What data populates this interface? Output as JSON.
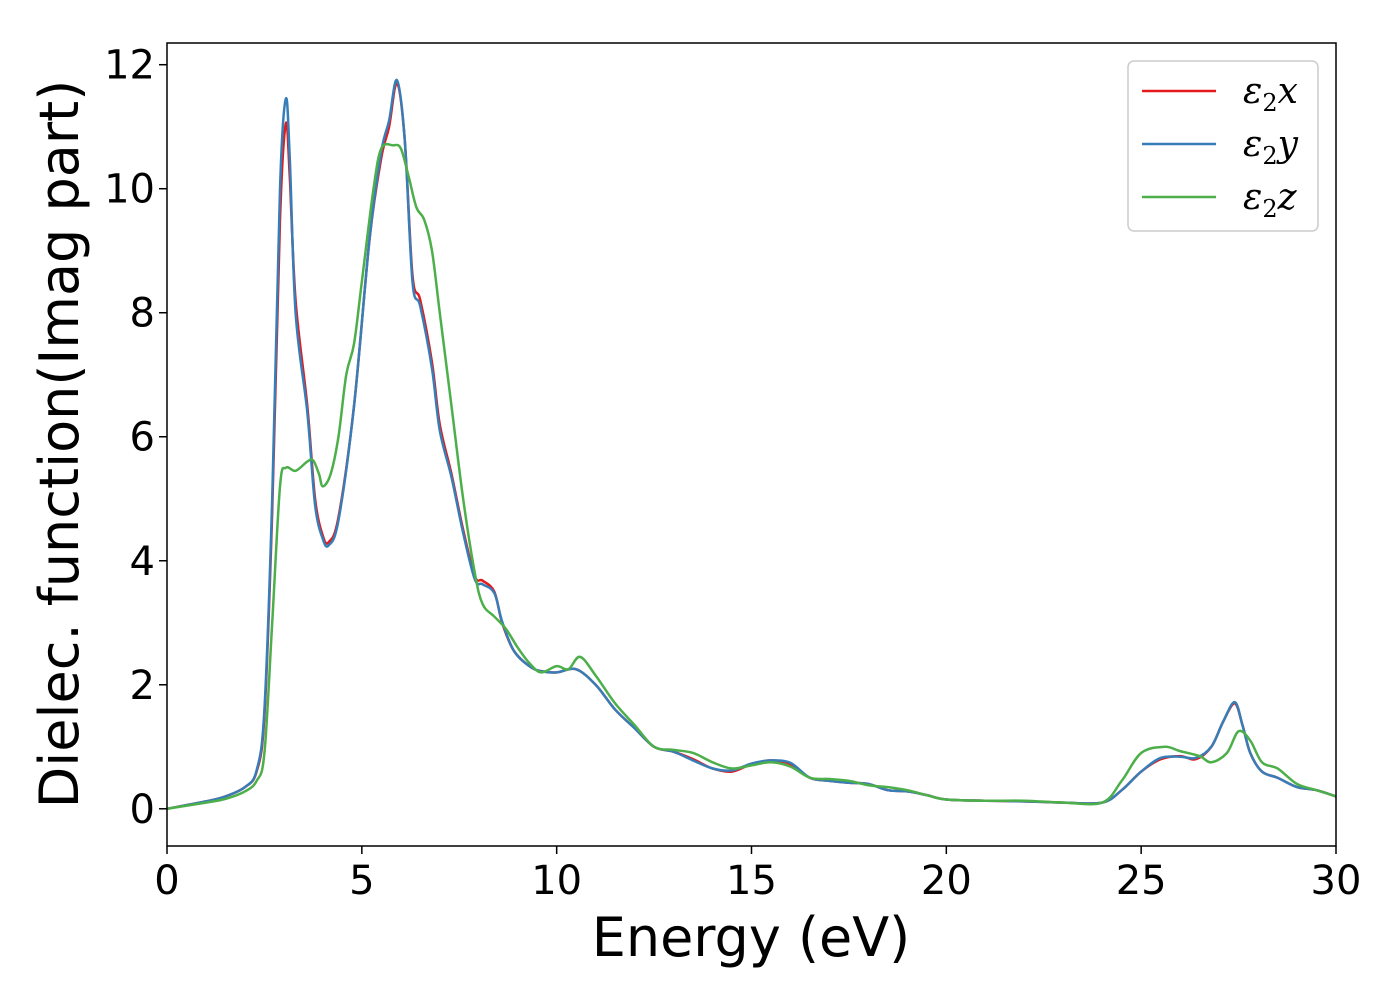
{
  "chart_data": {
    "type": "line",
    "title": "",
    "xlabel": "Energy (eV)",
    "ylabel": "Dielec. function(Imag part)",
    "xlim": [
      0,
      30
    ],
    "ylim": [
      -0.6,
      12.35
    ],
    "xticks": [
      0,
      5,
      10,
      15,
      20,
      25,
      30
    ],
    "yticks": [
      0,
      2,
      4,
      6,
      8,
      10,
      12
    ],
    "grid": false,
    "legend_position": "top-right",
    "series": [
      {
        "name": "ε2x",
        "legend": {
          "symbol": "ε",
          "sub": "2",
          "axis": "x"
        },
        "color": "#e41a1c",
        "x": [
          0,
          1,
          1.5,
          2.0,
          2.3,
          2.5,
          2.7,
          2.9,
          3.05,
          3.15,
          3.3,
          3.6,
          3.8,
          4.0,
          4.15,
          4.4,
          4.8,
          5.2,
          5.5,
          5.7,
          5.9,
          6.1,
          6.3,
          6.5,
          6.8,
          7.0,
          7.3,
          7.6,
          7.9,
          8.1,
          8.4,
          8.6,
          8.9,
          9.3,
          9.6,
          10.0,
          10.5,
          11.0,
          11.5,
          12.0,
          12.5,
          13.0,
          13.5,
          14.0,
          14.5,
          15.0,
          15.5,
          16.0,
          16.5,
          17.0,
          17.5,
          18.0,
          18.5,
          19.0,
          19.5,
          20.0,
          21.0,
          22.0,
          23.0,
          24.0,
          24.5,
          25.0,
          25.5,
          26.0,
          26.4,
          26.8,
          27.1,
          27.4,
          27.6,
          27.8,
          28.1,
          28.5,
          29.0,
          29.5,
          30.0
        ],
        "y": [
          0,
          0.12,
          0.2,
          0.35,
          0.6,
          1.5,
          4.8,
          9.5,
          11.05,
          10.2,
          8.2,
          6.5,
          5.0,
          4.4,
          4.3,
          4.7,
          6.5,
          9.2,
          10.5,
          11.0,
          11.7,
          10.8,
          8.6,
          8.2,
          7.2,
          6.2,
          5.4,
          4.5,
          3.75,
          3.68,
          3.5,
          3.0,
          2.55,
          2.3,
          2.22,
          2.2,
          2.25,
          2.0,
          1.6,
          1.3,
          1.0,
          0.92,
          0.8,
          0.65,
          0.6,
          0.72,
          0.78,
          0.72,
          0.5,
          0.45,
          0.42,
          0.4,
          0.3,
          0.28,
          0.22,
          0.15,
          0.13,
          0.12,
          0.1,
          0.1,
          0.3,
          0.6,
          0.8,
          0.85,
          0.8,
          1.0,
          1.4,
          1.7,
          1.35,
          0.9,
          0.6,
          0.5,
          0.35,
          0.3,
          0.2
        ]
      },
      {
        "name": "ε2y",
        "legend": {
          "symbol": "ε",
          "sub": "2",
          "axis": "y"
        },
        "color": "#377eb8",
        "x": [
          0,
          1,
          1.5,
          2.0,
          2.3,
          2.5,
          2.7,
          2.9,
          3.05,
          3.15,
          3.3,
          3.6,
          3.8,
          4.0,
          4.15,
          4.4,
          4.8,
          5.2,
          5.5,
          5.7,
          5.9,
          6.1,
          6.3,
          6.5,
          6.8,
          7.0,
          7.3,
          7.6,
          7.9,
          8.1,
          8.4,
          8.6,
          8.9,
          9.3,
          9.6,
          10.0,
          10.5,
          11.0,
          11.5,
          12.0,
          12.5,
          13.0,
          13.5,
          14.0,
          14.5,
          15.0,
          15.5,
          16.0,
          16.5,
          17.0,
          17.5,
          18.0,
          18.5,
          19.0,
          19.5,
          20.0,
          21.0,
          22.0,
          23.0,
          24.0,
          24.5,
          25.0,
          25.5,
          26.0,
          26.4,
          26.8,
          27.1,
          27.4,
          27.6,
          27.8,
          28.1,
          28.5,
          29.0,
          29.5,
          30.0
        ],
        "y": [
          0,
          0.12,
          0.2,
          0.35,
          0.62,
          1.6,
          5.0,
          10.0,
          11.45,
          10.5,
          8.0,
          6.4,
          4.9,
          4.35,
          4.25,
          4.65,
          6.5,
          9.2,
          10.6,
          11.1,
          11.75,
          10.8,
          8.5,
          8.1,
          7.1,
          6.1,
          5.35,
          4.45,
          3.7,
          3.62,
          3.48,
          3.02,
          2.55,
          2.3,
          2.22,
          2.2,
          2.25,
          2.0,
          1.6,
          1.3,
          1.0,
          0.92,
          0.78,
          0.65,
          0.62,
          0.73,
          0.78,
          0.74,
          0.5,
          0.45,
          0.42,
          0.4,
          0.3,
          0.28,
          0.22,
          0.15,
          0.13,
          0.12,
          0.1,
          0.1,
          0.3,
          0.6,
          0.82,
          0.84,
          0.82,
          1.0,
          1.4,
          1.72,
          1.35,
          0.9,
          0.6,
          0.5,
          0.35,
          0.3,
          0.2
        ]
      },
      {
        "name": "ε2z",
        "legend": {
          "symbol": "ε",
          "sub": "2",
          "axis": "z"
        },
        "color": "#4daf4a",
        "x": [
          0,
          1,
          1.5,
          2.0,
          2.3,
          2.5,
          2.7,
          2.9,
          3.05,
          3.3,
          3.6,
          3.75,
          3.9,
          4.0,
          4.2,
          4.4,
          4.6,
          4.8,
          5.0,
          5.3,
          5.5,
          5.8,
          6.0,
          6.2,
          6.4,
          6.6,
          6.8,
          7.0,
          7.3,
          7.6,
          7.9,
          8.1,
          8.4,
          8.7,
          9.0,
          9.3,
          9.6,
          10.0,
          10.3,
          10.6,
          11.0,
          11.5,
          12.0,
          12.5,
          13.0,
          13.5,
          14.0,
          14.5,
          15.0,
          15.5,
          16.0,
          16.5,
          17.0,
          17.5,
          18.0,
          18.5,
          19.0,
          19.5,
          20.0,
          21.0,
          22.0,
          23.0,
          24.0,
          24.5,
          25.0,
          25.6,
          26.0,
          26.5,
          26.8,
          27.2,
          27.5,
          27.8,
          28.1,
          28.5,
          29.0,
          29.5,
          30.0
        ],
        "y": [
          0,
          0.1,
          0.16,
          0.28,
          0.45,
          0.9,
          3.0,
          5.2,
          5.5,
          5.45,
          5.6,
          5.62,
          5.4,
          5.2,
          5.4,
          6.0,
          7.0,
          7.5,
          8.5,
          10.0,
          10.65,
          10.7,
          10.65,
          10.2,
          9.7,
          9.5,
          9.0,
          8.0,
          6.5,
          5.0,
          3.8,
          3.3,
          3.1,
          2.9,
          2.6,
          2.35,
          2.2,
          2.3,
          2.25,
          2.45,
          2.15,
          1.7,
          1.35,
          1.0,
          0.95,
          0.9,
          0.75,
          0.65,
          0.7,
          0.75,
          0.68,
          0.5,
          0.48,
          0.45,
          0.38,
          0.35,
          0.3,
          0.22,
          0.15,
          0.13,
          0.13,
          0.1,
          0.1,
          0.45,
          0.9,
          1.0,
          0.93,
          0.85,
          0.75,
          0.9,
          1.25,
          1.1,
          0.75,
          0.65,
          0.4,
          0.3,
          0.2
        ]
      }
    ]
  }
}
